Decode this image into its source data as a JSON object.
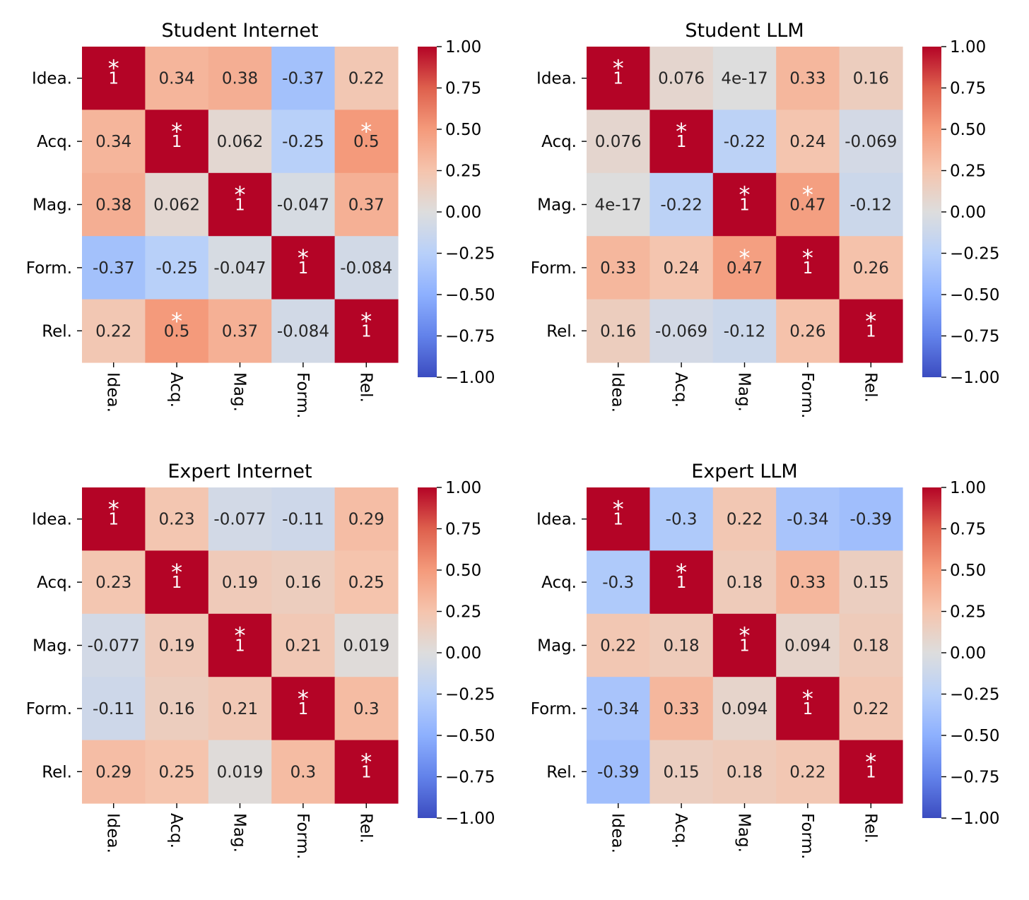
{
  "chart_data": [
    {
      "type": "heatmap",
      "title": "Student Internet",
      "categories": [
        "Idea.",
        "Acq.",
        "Mag.",
        "Form.",
        "Rel."
      ],
      "cells": [
        [
          "1",
          "0.34",
          "0.38",
          "-0.37",
          "0.22"
        ],
        [
          "0.34",
          "1",
          "0.062",
          "-0.25",
          "0.5"
        ],
        [
          "0.38",
          "0.062",
          "1",
          "-0.047",
          "0.37"
        ],
        [
          "-0.37",
          "-0.25",
          "-0.047",
          "1",
          "-0.084"
        ],
        [
          "0.22",
          "0.5",
          "0.37",
          "-0.084",
          "1"
        ]
      ],
      "significant": [
        [
          true,
          false,
          false,
          false,
          false
        ],
        [
          false,
          true,
          false,
          false,
          true
        ],
        [
          false,
          false,
          true,
          false,
          false
        ],
        [
          false,
          false,
          false,
          true,
          false
        ],
        [
          false,
          true,
          false,
          false,
          true
        ]
      ],
      "colorbar": {
        "vmin": -1,
        "vmax": 1,
        "ticks": [
          "1.00",
          "0.75",
          "0.50",
          "0.25",
          "0.00",
          "−0.25",
          "−0.50",
          "−0.75",
          "−1.00"
        ]
      },
      "colormap": "coolwarm",
      "significance_marker": "*"
    },
    {
      "type": "heatmap",
      "title": "Student LLM",
      "categories": [
        "Idea.",
        "Acq.",
        "Mag.",
        "Form.",
        "Rel."
      ],
      "cells": [
        [
          "1",
          "0.076",
          "4e-17",
          "0.33",
          "0.16"
        ],
        [
          "0.076",
          "1",
          "-0.22",
          "0.24",
          "-0.069"
        ],
        [
          "4e-17",
          "-0.22",
          "1",
          "0.47",
          "-0.12"
        ],
        [
          "0.33",
          "0.24",
          "0.47",
          "1",
          "0.26"
        ],
        [
          "0.16",
          "-0.069",
          "-0.12",
          "0.26",
          "1"
        ]
      ],
      "significant": [
        [
          true,
          false,
          false,
          false,
          false
        ],
        [
          false,
          true,
          false,
          false,
          false
        ],
        [
          false,
          false,
          true,
          true,
          false
        ],
        [
          false,
          false,
          true,
          true,
          false
        ],
        [
          false,
          false,
          false,
          false,
          true
        ]
      ],
      "colorbar": {
        "vmin": -1,
        "vmax": 1,
        "ticks": [
          "1.00",
          "0.75",
          "0.50",
          "0.25",
          "0.00",
          "−0.25",
          "−0.50",
          "−0.75",
          "−1.00"
        ]
      },
      "colormap": "coolwarm",
      "significance_marker": "*"
    },
    {
      "type": "heatmap",
      "title": "Expert Internet",
      "categories": [
        "Idea.",
        "Acq.",
        "Mag.",
        "Form.",
        "Rel."
      ],
      "cells": [
        [
          "1",
          "0.23",
          "-0.077",
          "-0.11",
          "0.29"
        ],
        [
          "0.23",
          "1",
          "0.19",
          "0.16",
          "0.25"
        ],
        [
          "-0.077",
          "0.19",
          "1",
          "0.21",
          "0.019"
        ],
        [
          "-0.11",
          "0.16",
          "0.21",
          "1",
          "0.3"
        ],
        [
          "0.29",
          "0.25",
          "0.019",
          "0.3",
          "1"
        ]
      ],
      "significant": [
        [
          true,
          false,
          false,
          false,
          false
        ],
        [
          false,
          true,
          false,
          false,
          false
        ],
        [
          false,
          false,
          true,
          false,
          false
        ],
        [
          false,
          false,
          false,
          true,
          false
        ],
        [
          false,
          false,
          false,
          false,
          true
        ]
      ],
      "colorbar": {
        "vmin": -1,
        "vmax": 1,
        "ticks": [
          "1.00",
          "0.75",
          "0.50",
          "0.25",
          "0.00",
          "−0.25",
          "−0.50",
          "−0.75",
          "−1.00"
        ]
      },
      "colormap": "coolwarm",
      "significance_marker": "*"
    },
    {
      "type": "heatmap",
      "title": "Expert LLM",
      "categories": [
        "Idea.",
        "Acq.",
        "Mag.",
        "Form.",
        "Rel."
      ],
      "cells": [
        [
          "1",
          "-0.3",
          "0.22",
          "-0.34",
          "-0.39"
        ],
        [
          "-0.3",
          "1",
          "0.18",
          "0.33",
          "0.15"
        ],
        [
          "0.22",
          "0.18",
          "1",
          "0.094",
          "0.18"
        ],
        [
          "-0.34",
          "0.33",
          "0.094",
          "1",
          "0.22"
        ],
        [
          "-0.39",
          "0.15",
          "0.18",
          "0.22",
          "1"
        ]
      ],
      "significant": [
        [
          true,
          false,
          false,
          false,
          false
        ],
        [
          false,
          true,
          false,
          false,
          false
        ],
        [
          false,
          false,
          true,
          false,
          false
        ],
        [
          false,
          false,
          false,
          true,
          false
        ],
        [
          false,
          false,
          false,
          false,
          true
        ]
      ],
      "colorbar": {
        "vmin": -1,
        "vmax": 1,
        "ticks": [
          "1.00",
          "0.75",
          "0.50",
          "0.25",
          "0.00",
          "−0.25",
          "−0.50",
          "−0.75",
          "−1.00"
        ]
      },
      "colormap": "coolwarm",
      "significance_marker": "*"
    }
  ]
}
